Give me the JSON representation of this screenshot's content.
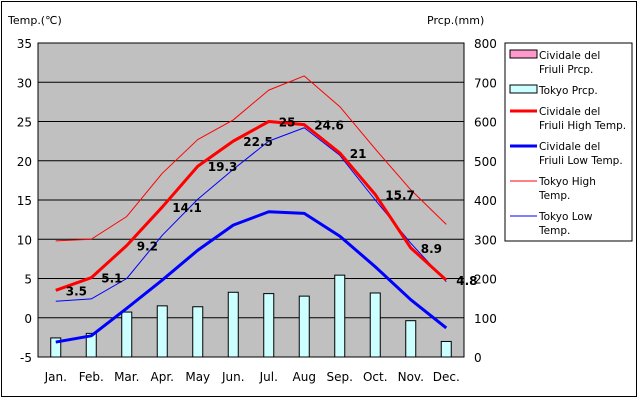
{
  "chart_data": {
    "type": "line",
    "left_axis_label": "Temp.(℃)",
    "right_axis_label": "Prcp.(mm)",
    "categories": [
      "Jan.",
      "Feb.",
      "Mar.",
      "Apr.",
      "May",
      "Jun.",
      "Jul.",
      "Aug",
      "Sep.",
      "Oct.",
      "Nov.",
      "Dec."
    ],
    "y_left_range": [
      -5,
      35
    ],
    "y_left_ticks": [
      "-5",
      "0",
      "5",
      "10",
      "15",
      "20",
      "25",
      "30",
      "35"
    ],
    "y_right_range": [
      0,
      800
    ],
    "y_right_ticks": [
      "0",
      "100",
      "200",
      "300",
      "400",
      "500",
      "600",
      "700",
      "800"
    ],
    "grid": true,
    "plot_background": "#c0c0c0",
    "legend_position": "right",
    "bar_series": [
      {
        "name": "Cividale del Friuli Prcp.",
        "legend_lines": [
          "Cividale del",
          "Friuli Prcp."
        ],
        "color": "#ff99cc",
        "values": [
          null,
          null,
          null,
          null,
          null,
          null,
          null,
          null,
          null,
          null,
          null,
          null
        ]
      },
      {
        "name": "Tokyo Prcp.",
        "legend_lines": [
          "Tokyo Prcp."
        ],
        "color": "#ccffff",
        "values": [
          48.6,
          60.2,
          114.5,
          130.3,
          128.0,
          164.9,
          161.5,
          155.1,
          208.5,
          163.1,
          92.5,
          39.6
        ]
      }
    ],
    "line_series": [
      {
        "name": "Cividale del Friuli High Temp.",
        "legend_lines": [
          "Cividale del",
          "Friuli High Temp."
        ],
        "color": "#ff0000",
        "width": 3,
        "values": [
          3.5,
          5.1,
          9.2,
          14.1,
          19.3,
          22.5,
          25,
          24.6,
          21,
          15.7,
          8.9,
          4.8
        ],
        "labels": [
          "3.5",
          "5.1",
          "9.2",
          "14.1",
          "19.3",
          "22.5",
          "25",
          "24.6",
          "21",
          "15.7",
          "8.9",
          "4.8"
        ]
      },
      {
        "name": "Cividale del Friuli Low Temp.",
        "legend_lines": [
          "Cividale del",
          "Friuli Low Temp."
        ],
        "color": "#0000ff",
        "width": 3,
        "values": [
          -3.1,
          -2.3,
          1.2,
          4.8,
          8.6,
          11.8,
          13.5,
          13.3,
          10.4,
          6.5,
          2.3,
          -1.3
        ]
      },
      {
        "name": "Tokyo High Temp.",
        "legend_lines": [
          "Tokyo High",
          "Temp."
        ],
        "color": "#ff0000",
        "width": 1,
        "values": [
          9.8,
          10.0,
          12.9,
          18.4,
          22.7,
          25.2,
          29.0,
          30.8,
          26.9,
          21.5,
          16.3,
          11.9
        ]
      },
      {
        "name": "Tokyo Low Temp.",
        "legend_lines": [
          "Tokyo Low",
          "Temp."
        ],
        "color": "#0000ff",
        "width": 1,
        "values": [
          2.1,
          2.4,
          5.0,
          10.5,
          15.1,
          18.9,
          22.5,
          24.2,
          20.7,
          15.0,
          9.5,
          4.6
        ]
      }
    ]
  }
}
